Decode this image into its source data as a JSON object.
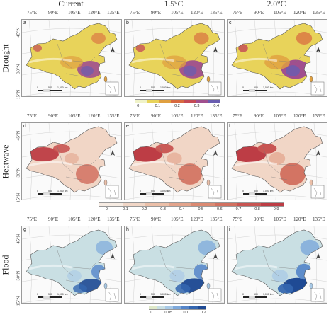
{
  "columns": [
    "Current",
    "1.5°C",
    "2.0°C"
  ],
  "rows": [
    {
      "name": "Drought",
      "panels": [
        "a",
        "b",
        "c"
      ],
      "legend_ticks": [
        "0",
        "0.1",
        "0.2",
        "0.3",
        "0.4"
      ],
      "colors": [
        "#f0f3c8",
        "#e8d35a",
        "#e0a040",
        "#d86a40",
        "#c54a55",
        "#a04f8e",
        "#6a5db0"
      ]
    },
    {
      "name": "Heatwave",
      "panels": [
        "d",
        "e",
        "f"
      ],
      "legend_ticks": [
        "0",
        "0.1",
        "0.2",
        "0.3",
        "0.4",
        "0.5",
        "0.6",
        "0.7",
        "0.8",
        "0.9"
      ],
      "colors": [
        "#f7ece3",
        "#f1d6c6",
        "#ebbfa8",
        "#e3a48c",
        "#db8a72",
        "#d27160",
        "#c85552",
        "#bd3d45"
      ]
    },
    {
      "name": "Flood",
      "panels": [
        "g",
        "h",
        "i"
      ],
      "legend_ticks": [
        "0",
        "0.05",
        "0.1",
        "0.2"
      ],
      "colors": [
        "#dfe9c8",
        "#c9dfe3",
        "#a8c9e6",
        "#7ea9db",
        "#5585c9",
        "#3466b0",
        "#1f4a94"
      ]
    }
  ],
  "lon_labels": [
    "75°E",
    "90°E",
    "105°E",
    "120°E",
    "135°E"
  ],
  "lat_labels": [
    "45°N",
    "30°N",
    "15°N"
  ],
  "scale_text": "1,000 km",
  "scale_ticks": [
    "0",
    "500"
  ]
}
